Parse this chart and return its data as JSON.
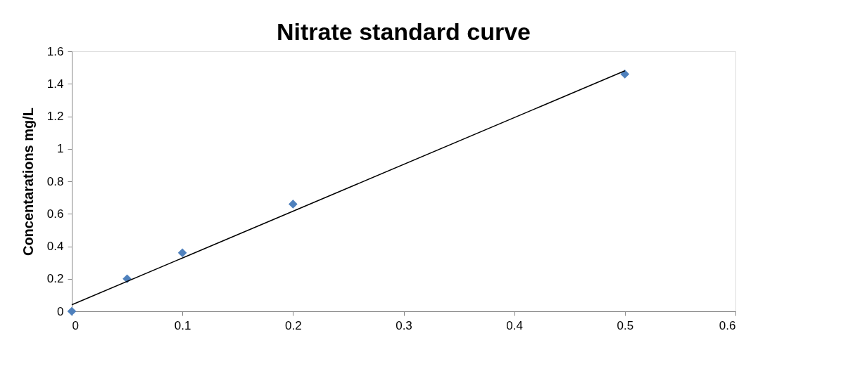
{
  "chart_data": {
    "type": "scatter",
    "title": "Nitrate standard curve",
    "ylabel": "Concentarations mg/L",
    "x": [
      0,
      0.05,
      0.1,
      0.2,
      0.5
    ],
    "series": [
      {
        "color": "#4f81bd",
        "marker": "diamond",
        "values": [
          0,
          0.2,
          0.36,
          0.66,
          1.46
        ]
      },
      {
        "type": "line",
        "color": "#000000",
        "marker": "none",
        "x": [
          0,
          0.5
        ],
        "values": [
          0.04,
          1.48
        ]
      }
    ],
    "xlim": [
      0,
      0.6
    ],
    "xticks": [
      0,
      0.1,
      0.2,
      0.3,
      0.4,
      0.5,
      0.6
    ],
    "ylim": [
      0,
      1.6
    ],
    "yticks": [
      0,
      0.2,
      0.4,
      0.6,
      0.8,
      1,
      1.2,
      1.4,
      1.6
    ],
    "grid": false
  }
}
